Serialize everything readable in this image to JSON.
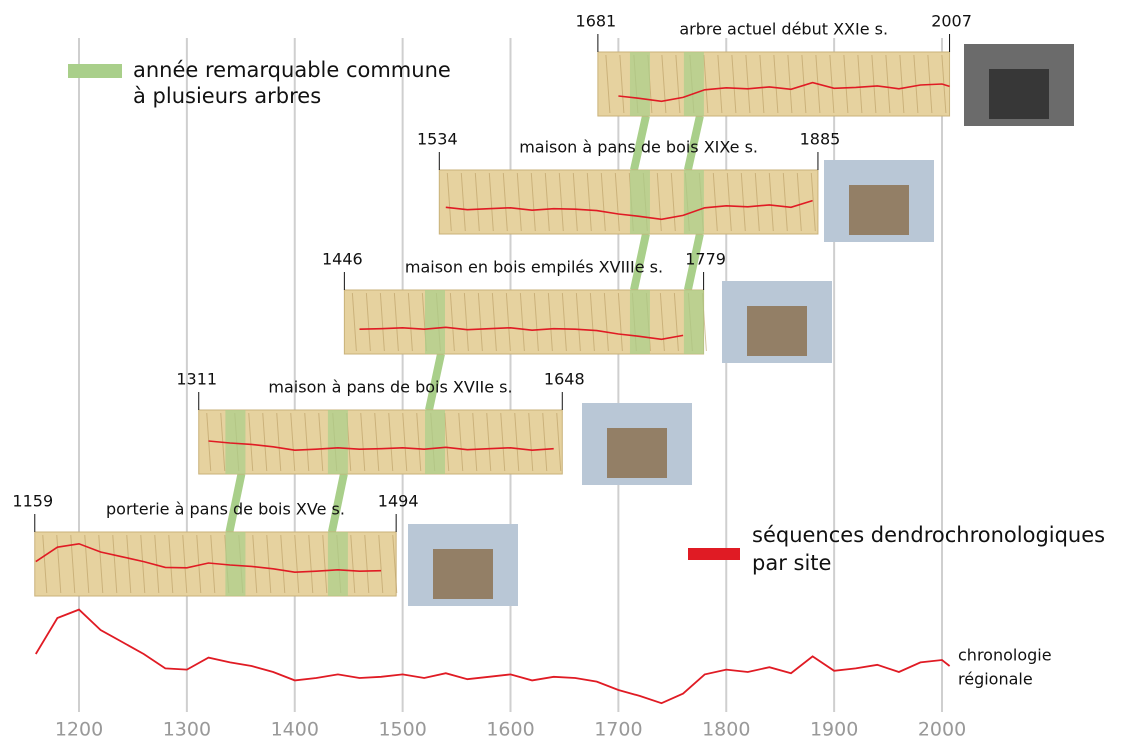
{
  "chart_data": {
    "type": "timeline",
    "xlim": [
      1150,
      2025
    ],
    "xticks": [
      1200,
      1300,
      1400,
      1500,
      1600,
      1700,
      1800,
      1900,
      2000
    ],
    "grid": true,
    "legend": {
      "remarkable": [
        "année remarquable commune",
        "à plusieurs arbres"
      ],
      "sequences": [
        "séquences dendrochronologiques",
        "par site"
      ]
    },
    "remarkable_color": "#a9cf8a",
    "line_color": "#e01b24",
    "remarkable_years": [
      1345,
      1440,
      1530,
      1720,
      1770
    ],
    "sites": [
      {
        "label": "porterie à pans de bois XVe s.",
        "start": 1159,
        "end": 1494
      },
      {
        "label": "maison à pans de bois XVIIe s.",
        "start": 1311,
        "end": 1648
      },
      {
        "label": "maison en bois empilés XVIIIe s.",
        "start": 1446,
        "end": 1779
      },
      {
        "label": "maison à pans de bois XIXe s.",
        "start": 1534,
        "end": 1885
      },
      {
        "label": "arbre actuel début XXIe s.",
        "start": 1681,
        "end": 2007
      }
    ],
    "regional": {
      "name": [
        "chronologie",
        "régionale"
      ],
      "ylim": [
        0,
        10
      ],
      "x": [
        1160,
        1180,
        1200,
        1220,
        1240,
        1260,
        1280,
        1300,
        1320,
        1340,
        1360,
        1380,
        1400,
        1420,
        1440,
        1460,
        1480,
        1500,
        1520,
        1540,
        1560,
        1580,
        1600,
        1620,
        1640,
        1660,
        1680,
        1700,
        1720,
        1740,
        1760,
        1780,
        1800,
        1820,
        1840,
        1860,
        1880,
        1900,
        1920,
        1940,
        1960,
        1980,
        2000,
        2007
      ],
      "values": [
        5.5,
        8.5,
        9.2,
        7.5,
        6.5,
        5.5,
        4.3,
        4.2,
        5.2,
        4.8,
        4.5,
        4.0,
        3.3,
        3.5,
        3.8,
        3.5,
        3.6,
        3.8,
        3.5,
        3.9,
        3.4,
        3.6,
        3.8,
        3.3,
        3.6,
        3.5,
        3.2,
        2.5,
        2.0,
        1.4,
        2.2,
        3.8,
        4.2,
        4.0,
        4.4,
        3.9,
        5.3,
        4.1,
        4.3,
        4.6,
        4.0,
        4.8,
        5.0,
        4.5
      ]
    }
  }
}
